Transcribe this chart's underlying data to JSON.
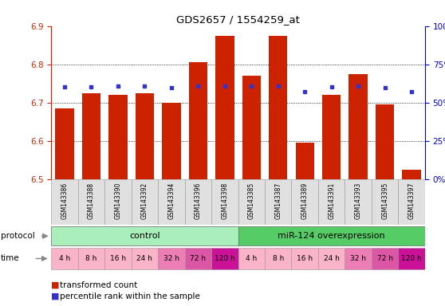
{
  "title": "GDS2657 / 1554259_at",
  "samples": [
    "GSM143386",
    "GSM143388",
    "GSM143390",
    "GSM143392",
    "GSM143394",
    "GSM143396",
    "GSM143398",
    "GSM143385",
    "GSM143387",
    "GSM143389",
    "GSM143391",
    "GSM143393",
    "GSM143395",
    "GSM143397"
  ],
  "red_values": [
    6.685,
    6.725,
    6.72,
    6.725,
    6.7,
    6.805,
    6.875,
    6.77,
    6.875,
    6.595,
    6.72,
    6.775,
    6.695,
    6.525
  ],
  "blue_values": [
    6.74,
    6.74,
    6.742,
    6.742,
    6.738,
    6.742,
    6.742,
    6.742,
    6.742,
    6.728,
    6.74,
    6.742,
    6.738,
    6.728
  ],
  "ymin": 6.5,
  "ymax": 6.9,
  "time_labels": [
    "4 h",
    "8 h",
    "16 h",
    "24 h",
    "32 h",
    "72 h",
    "120 h",
    "4 h",
    "8 h",
    "16 h",
    "24 h",
    "32 h",
    "72 h",
    "120 h"
  ],
  "time_colors": [
    "#F9B4C9",
    "#F9B4C9",
    "#F9B4C9",
    "#F9B4C9",
    "#EC7DB5",
    "#DD55A5",
    "#CC1199",
    "#F9B4C9",
    "#F9B4C9",
    "#F9B4C9",
    "#F9B4C9",
    "#EC7DB5",
    "#DD55A5",
    "#CC1199"
  ],
  "bar_color": "#CC2200",
  "dot_color": "#3333CC",
  "axis_left_color": "#CC2200",
  "axis_right_color": "#0000CC",
  "ctrl_color": "#AAEEBB",
  "mir_color": "#55CC66"
}
